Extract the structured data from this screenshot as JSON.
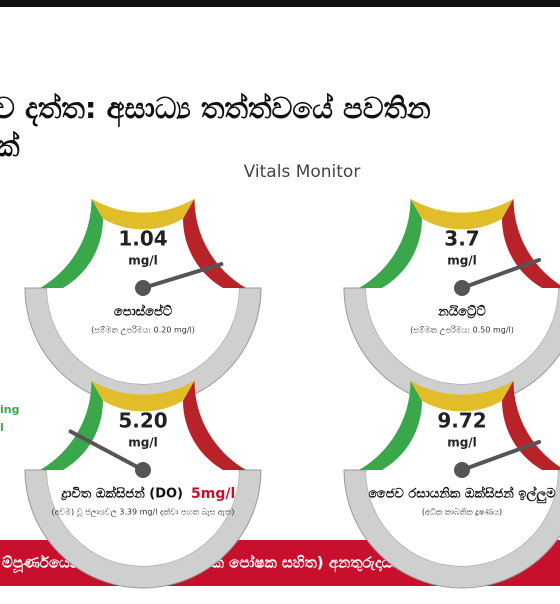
{
  "header": {
    "title_line1": "ව දත්ත: අසාධ්‍ය තත්ත්වයේ පවතින",
    "title_line2": "ක්",
    "subtitle": "Vitals Monitor",
    "side_text1": "ing",
    "side_text2": "l"
  },
  "gauges": [
    {
      "value": "1.04",
      "unit": "mg/l",
      "label": "පොස්පේට්",
      "note": "(සම්මත උපරිමය: 0.20 mg/l)"
    },
    {
      "value": "3.7",
      "unit": "mg/l",
      "label": "නයිට්‍රේට්",
      "note": "(සම්මත උපරිමය: 0.50 mg/l)"
    },
    {
      "value": "5.20",
      "unit": "mg/l",
      "label": "ද්‍රාවිත ඔක්සිජන් (DO)",
      "label_extra": "5mg/l",
      "note": "(අවම) වූ ජලාශවල 3.39 mg/l දක්වා පහත බැස ඇත)"
    },
    {
      "value": "9.72",
      "unit": "mg/l",
      "label": "ජෛව රසායනික ඔක්සිජන් ඉල්ලුම",
      "note": "(අධික කාබනික දූෂණය)"
    }
  ],
  "footer": {
    "banner": "ම්පූර්ණයෙන්ම Eutrophic (අධික පෝෂක සහිත) අනතුරුදායක ත"
  }
}
